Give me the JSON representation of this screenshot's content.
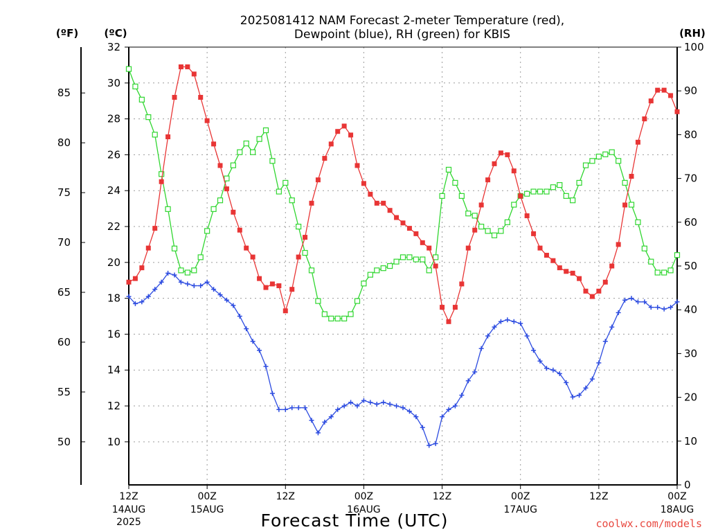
{
  "chart_data": {
    "type": "line",
    "title_line1": "2025081412 NAM Forecast 2-meter Temperature (red),",
    "title_line2": "Dewpoint (blue), RH (green) for KBIS",
    "xlabel": "Forecast Time (UTC)",
    "watermark": "coolwx.com/models",
    "unit_f": "(ºF)",
    "unit_c": "(ºC)",
    "unit_rh": "(RH)",
    "x_range_hours": [
      0,
      84
    ],
    "y_c_range": [
      7.6,
      32
    ],
    "y_rh_range": [
      0,
      100
    ],
    "y_c_ticks": [
      "10",
      "12",
      "14",
      "16",
      "18",
      "20",
      "22",
      "24",
      "26",
      "28",
      "30",
      "32"
    ],
    "y_f_ticks": [
      "50",
      "55",
      "60",
      "65",
      "70",
      "75",
      "80",
      "85"
    ],
    "y_rh_ticks": [
      "0",
      "10",
      "20",
      "30",
      "40",
      "50",
      "60",
      "70",
      "80",
      "90",
      "100"
    ],
    "grid": true,
    "x_ticks": [
      {
        "hour": 0,
        "label": "12Z",
        "sub": "14AUG",
        "sub2": "2025"
      },
      {
        "hour": 12,
        "label": "00Z",
        "sub": "15AUG",
        "sub2": ""
      },
      {
        "hour": 24,
        "label": "12Z",
        "sub": "",
        "sub2": ""
      },
      {
        "hour": 36,
        "label": "00Z",
        "sub": "16AUG",
        "sub2": ""
      },
      {
        "hour": 48,
        "label": "12Z",
        "sub": "",
        "sub2": ""
      },
      {
        "hour": 60,
        "label": "00Z",
        "sub": "17AUG",
        "sub2": ""
      },
      {
        "hour": 72,
        "label": "12Z",
        "sub": "",
        "sub2": ""
      },
      {
        "hour": 84,
        "label": "00Z",
        "sub": "18AUG",
        "sub2": ""
      }
    ],
    "series": [
      {
        "name": "Temperature",
        "unit": "°C",
        "color": "#e83535",
        "marker": "filled-square",
        "x": [
          0,
          1,
          2,
          3,
          4,
          5,
          6,
          7,
          8,
          9,
          10,
          11,
          12,
          13,
          14,
          15,
          16,
          17,
          18,
          19,
          20,
          21,
          22,
          23,
          24,
          25,
          26,
          27,
          28,
          29,
          30,
          31,
          32,
          33,
          34,
          35,
          36,
          37,
          38,
          39,
          40,
          41,
          42,
          43,
          44,
          45,
          46,
          47,
          48,
          49,
          50,
          51,
          52,
          53,
          54,
          55,
          56,
          57,
          58,
          59,
          60,
          61,
          62,
          63,
          64,
          65,
          66,
          67,
          68,
          69,
          70,
          71,
          72,
          73,
          74,
          75,
          76,
          77,
          78,
          79,
          80,
          81,
          82,
          83,
          84
        ],
        "values": [
          18.9,
          19.1,
          19.7,
          20.8,
          21.9,
          24.5,
          27.0,
          29.2,
          30.9,
          30.9,
          30.5,
          29.2,
          27.9,
          26.6,
          25.4,
          24.1,
          22.8,
          21.8,
          20.8,
          20.3,
          19.1,
          18.6,
          18.8,
          18.7,
          17.3,
          18.5,
          20.3,
          21.4,
          23.3,
          24.6,
          25.8,
          26.6,
          27.3,
          27.6,
          27.1,
          25.4,
          24.4,
          23.8,
          23.3,
          23.3,
          22.9,
          22.5,
          22.2,
          21.9,
          21.6,
          21.1,
          20.8,
          19.8,
          17.5,
          16.7,
          17.5,
          18.8,
          20.8,
          21.8,
          23.2,
          24.6,
          25.5,
          26.1,
          26.0,
          25.1,
          23.7,
          22.6,
          21.6,
          20.8,
          20.4,
          20.1,
          19.7,
          19.5,
          19.4,
          19.1,
          18.4,
          18.1,
          18.4,
          18.9,
          19.8,
          21.0,
          23.2,
          24.8,
          26.7,
          28.0,
          29.0,
          29.6,
          29.6,
          29.3,
          28.4
        ]
      },
      {
        "name": "Dewpoint",
        "unit": "°C",
        "color": "#2c4be0",
        "marker": "plus",
        "x": [
          0,
          1,
          2,
          3,
          4,
          5,
          6,
          7,
          8,
          9,
          10,
          11,
          12,
          13,
          14,
          15,
          16,
          17,
          18,
          19,
          20,
          21,
          22,
          23,
          24,
          25,
          26,
          27,
          28,
          29,
          30,
          31,
          32,
          33,
          34,
          35,
          36,
          37,
          38,
          39,
          40,
          41,
          42,
          43,
          44,
          45,
          46,
          47,
          48,
          49,
          50,
          51,
          52,
          53,
          54,
          55,
          56,
          57,
          58,
          59,
          60,
          61,
          62,
          63,
          64,
          65,
          66,
          67,
          68,
          69,
          70,
          71,
          72,
          73,
          74,
          75,
          76,
          77,
          78,
          79,
          80,
          81,
          82,
          83,
          84
        ],
        "values": [
          18.1,
          17.7,
          17.8,
          18.1,
          18.5,
          18.9,
          19.4,
          19.3,
          18.9,
          18.8,
          18.7,
          18.7,
          18.9,
          18.5,
          18.2,
          17.9,
          17.6,
          17.0,
          16.3,
          15.6,
          15.1,
          14.2,
          12.7,
          11.8,
          11.8,
          11.9,
          11.9,
          11.9,
          11.2,
          10.5,
          11.1,
          11.4,
          11.8,
          12.0,
          12.2,
          12.0,
          12.3,
          12.2,
          12.1,
          12.2,
          12.1,
          12.0,
          11.9,
          11.7,
          11.4,
          10.8,
          9.8,
          9.9,
          11.4,
          11.8,
          12.0,
          12.6,
          13.4,
          13.9,
          15.2,
          15.9,
          16.4,
          16.7,
          16.8,
          16.7,
          16.6,
          15.9,
          15.1,
          14.5,
          14.1,
          14.0,
          13.8,
          13.3,
          12.5,
          12.6,
          13.0,
          13.5,
          14.4,
          15.6,
          16.4,
          17.2,
          17.9,
          18.0,
          17.8,
          17.8,
          17.5,
          17.5,
          17.4,
          17.5,
          17.8
        ]
      },
      {
        "name": "RH",
        "unit": "%",
        "color": "#2fd62f",
        "marker": "open-square",
        "x": [
          0,
          1,
          2,
          3,
          4,
          5,
          6,
          7,
          8,
          9,
          10,
          11,
          12,
          13,
          14,
          15,
          16,
          17,
          18,
          19,
          20,
          21,
          22,
          23,
          24,
          25,
          26,
          27,
          28,
          29,
          30,
          31,
          32,
          33,
          34,
          35,
          36,
          37,
          38,
          39,
          40,
          41,
          42,
          43,
          44,
          45,
          46,
          47,
          48,
          49,
          50,
          51,
          52,
          53,
          54,
          55,
          56,
          57,
          58,
          59,
          60,
          61,
          62,
          63,
          64,
          65,
          66,
          67,
          68,
          69,
          70,
          71,
          72,
          73,
          74,
          75,
          76,
          77,
          78,
          79,
          80,
          81,
          82,
          83,
          84
        ],
        "values": [
          95,
          91,
          88,
          84,
          80,
          71,
          63,
          54,
          49,
          48.5,
          49,
          52,
          58,
          63,
          65,
          70,
          73,
          76,
          78,
          76,
          79,
          81,
          74,
          67,
          69,
          65,
          59,
          53,
          49,
          42,
          39,
          38,
          38,
          38,
          39,
          42,
          46,
          48,
          49,
          49.5,
          50,
          51,
          52,
          52,
          51.5,
          51.5,
          49,
          52,
          66,
          72,
          69,
          66,
          62,
          61.5,
          59,
          58,
          57,
          58,
          60,
          64,
          66,
          66.5,
          67,
          67,
          67,
          68,
          68.5,
          66,
          65,
          69,
          73,
          74,
          75,
          75.5,
          76,
          74,
          69,
          64,
          60,
          54,
          51,
          48.5,
          48.5,
          49,
          52.5
        ]
      }
    ]
  }
}
